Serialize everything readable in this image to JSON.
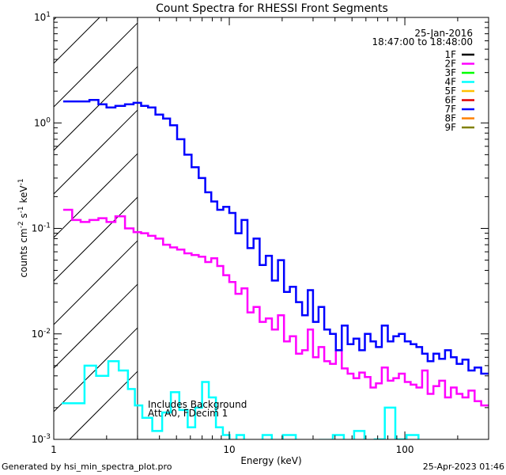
{
  "chart_data": {
    "type": "line",
    "title": "Count Spectra for RHESSI Front Segments",
    "xlabel": "Energy (keV)",
    "ylabel_parts": [
      "counts cm",
      "-2",
      " s",
      "-1",
      " keV",
      "-1"
    ],
    "xscale": "log",
    "yscale": "log",
    "xlim": [
      1,
      300
    ],
    "ylim": [
      0.001,
      10
    ],
    "x_ticks": [
      {
        "v": 1,
        "label": "1"
      },
      {
        "v": 10,
        "label": "10"
      },
      {
        "v": 100,
        "label": "100"
      }
    ],
    "y_ticks": [
      {
        "v": 0.001,
        "base": "10",
        "exp": "-3"
      },
      {
        "v": 0.01,
        "base": "10",
        "exp": "-2"
      },
      {
        "v": 0.1,
        "base": "10",
        "exp": "-1"
      },
      {
        "v": 1,
        "base": "10",
        "exp": "0"
      },
      {
        "v": 10,
        "base": "10",
        "exp": "1"
      }
    ],
    "attenuator_region": [
      1,
      3
    ],
    "legend_date": "25-Jan-2016",
    "legend_time": "18:47:00 to 18:48:00",
    "annotations": [
      "Includes Background",
      "Att A0, FDecim 1"
    ],
    "series": [
      {
        "name": "1F",
        "color": "#000000",
        "x": [],
        "y": []
      },
      {
        "name": "2F",
        "color": "#ff00ff",
        "x": [
          1.2,
          1.35,
          1.5,
          1.7,
          1.9,
          2.1,
          2.4,
          2.7,
          3.0,
          3.3,
          3.6,
          4.0,
          4.4,
          4.8,
          5.3,
          5.8,
          6.4,
          7.0,
          7.6,
          8.2,
          8.9,
          9.6,
          10.4,
          11.3,
          12.2,
          13.2,
          14.3,
          15.5,
          16.8,
          18.2,
          19.7,
          21.3,
          23.0,
          25.0,
          27.0,
          29.0,
          31.0,
          33.5,
          36.0,
          39.0,
          42.0,
          45.5,
          49.0,
          53.0,
          57.0,
          61.5,
          66.0,
          71.0,
          77.0,
          83.0,
          89.0,
          96.0,
          104.0,
          112.0,
          121.0,
          130.0,
          140.0,
          151.0,
          163.0,
          176.0,
          190.0,
          205.0,
          221.0,
          240.0,
          260.0,
          285.0
        ],
        "y": [
          0.15,
          0.12,
          0.115,
          0.12,
          0.125,
          0.115,
          0.13,
          0.1,
          0.092,
          0.09,
          0.085,
          0.08,
          0.07,
          0.066,
          0.063,
          0.058,
          0.056,
          0.054,
          0.048,
          0.052,
          0.044,
          0.036,
          0.031,
          0.024,
          0.027,
          0.016,
          0.018,
          0.013,
          0.014,
          0.011,
          0.015,
          0.0085,
          0.0095,
          0.0065,
          0.007,
          0.011,
          0.006,
          0.0075,
          0.0055,
          0.0052,
          0.007,
          0.0047,
          0.0042,
          0.0038,
          0.0043,
          0.0039,
          0.0031,
          0.0034,
          0.0048,
          0.0036,
          0.0038,
          0.0042,
          0.0035,
          0.0033,
          0.0031,
          0.0045,
          0.0027,
          0.0032,
          0.0036,
          0.0025,
          0.0031,
          0.0027,
          0.0025,
          0.0029,
          0.0023,
          0.0021
        ]
      },
      {
        "name": "3F",
        "color": "#00ff00",
        "x": [],
        "y": []
      },
      {
        "name": "4F",
        "color": "#00ffff",
        "x": [
          1.2,
          1.4,
          1.6,
          1.9,
          2.2,
          2.5,
          2.8,
          3.0,
          3.4,
          3.9,
          4.4,
          4.9,
          5.5,
          6.1,
          6.7,
          7.3,
          8.0,
          8.8,
          9.6,
          10.5,
          11.5,
          12.8,
          14.5,
          16.5,
          18.5,
          22.0,
          26.0,
          30.0,
          36.0,
          42.0,
          48.0,
          55.0,
          63.0,
          72.0,
          82.0,
          95.0,
          110.0,
          130.0
        ],
        "y": [
          0.0022,
          0.0022,
          0.005,
          0.004,
          0.0055,
          0.0045,
          0.003,
          0.0021,
          0.0016,
          0.0012,
          0.0018,
          0.0028,
          0.0019,
          0.0013,
          0.002,
          0.0035,
          0.0025,
          0.0013,
          0.0011,
          0.00098,
          0.0011,
          0.00095,
          0.00098,
          0.0011,
          0.00096,
          0.0011,
          0.00097,
          0.00095,
          0.00099,
          0.0011,
          0.00096,
          0.0012,
          0.00097,
          0.001,
          0.002,
          0.001,
          0.0011,
          0.00097
        ]
      },
      {
        "name": "5F",
        "color": "#ffc000",
        "x": [],
        "y": []
      },
      {
        "name": "6F",
        "color": "#e00000",
        "x": [],
        "y": []
      },
      {
        "name": "7F",
        "color": "#0000ff",
        "x": [
          1.2,
          1.35,
          1.5,
          1.7,
          1.9,
          2.1,
          2.4,
          2.7,
          3.0,
          3.3,
          3.6,
          4.0,
          4.4,
          4.8,
          5.3,
          5.8,
          6.4,
          7.0,
          7.6,
          8.2,
          8.9,
          9.6,
          10.4,
          11.3,
          12.2,
          13.2,
          14.3,
          15.5,
          16.8,
          18.2,
          19.7,
          21.3,
          23.0,
          25.0,
          27.0,
          29.0,
          31.0,
          33.5,
          36.0,
          39.0,
          42.0,
          45.5,
          49.0,
          53.0,
          57.0,
          61.5,
          66.0,
          71.0,
          77.0,
          83.0,
          89.0,
          96.0,
          104.0,
          112.0,
          121.0,
          130.0,
          140.0,
          151.0,
          163.0,
          176.0,
          190.0,
          205.0,
          221.0,
          240.0,
          260.0,
          285.0
        ],
        "y": [
          1.6,
          1.6,
          1.6,
          1.65,
          1.5,
          1.4,
          1.45,
          1.5,
          1.55,
          1.45,
          1.4,
          1.2,
          1.1,
          0.95,
          0.7,
          0.5,
          0.38,
          0.3,
          0.22,
          0.18,
          0.15,
          0.16,
          0.14,
          0.09,
          0.12,
          0.065,
          0.08,
          0.045,
          0.055,
          0.032,
          0.05,
          0.025,
          0.028,
          0.02,
          0.015,
          0.026,
          0.013,
          0.018,
          0.011,
          0.01,
          0.007,
          0.012,
          0.008,
          0.009,
          0.007,
          0.01,
          0.0085,
          0.0075,
          0.012,
          0.0085,
          0.0095,
          0.01,
          0.0085,
          0.008,
          0.0075,
          0.0065,
          0.0055,
          0.0065,
          0.0058,
          0.007,
          0.006,
          0.0052,
          0.0057,
          0.0045,
          0.0048,
          0.0042
        ]
      },
      {
        "name": "8F",
        "color": "#ff8000",
        "x": [],
        "y": []
      },
      {
        "name": "9F",
        "color": "#808000",
        "x": [],
        "y": []
      }
    ]
  },
  "footer": {
    "left": "Generated by hsi_min_spectra_plot.pro",
    "right": "25-Apr-2023 01:46"
  }
}
